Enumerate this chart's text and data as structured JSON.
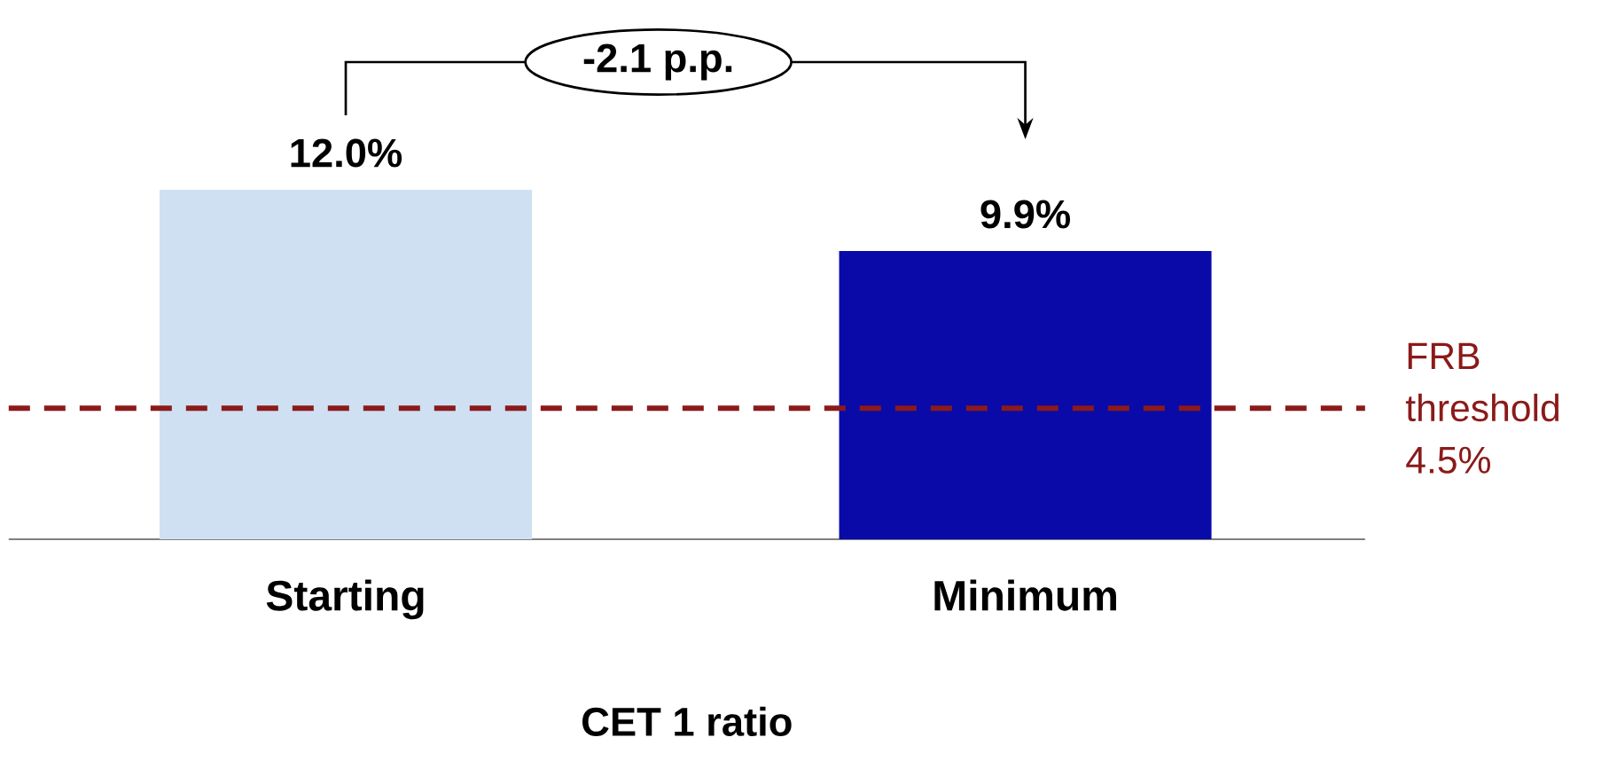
{
  "chart_data": {
    "type": "bar",
    "categories": [
      "Starting",
      "Minimum"
    ],
    "values": [
      12.0,
      9.9
    ],
    "colors": [
      "#cfe0f2",
      "#0a0aa8"
    ],
    "value_labels": [
      "12.0%",
      "9.9%"
    ],
    "xlabel": "CET 1 ratio",
    "annotations": [
      "-2.1 p.p."
    ],
    "ref_lines": [
      {
        "axis": "y",
        "value": 4.5,
        "label": "FRB threshold 4.5%",
        "color": "#8b1a1a",
        "line_style": "dashed"
      }
    ]
  }
}
